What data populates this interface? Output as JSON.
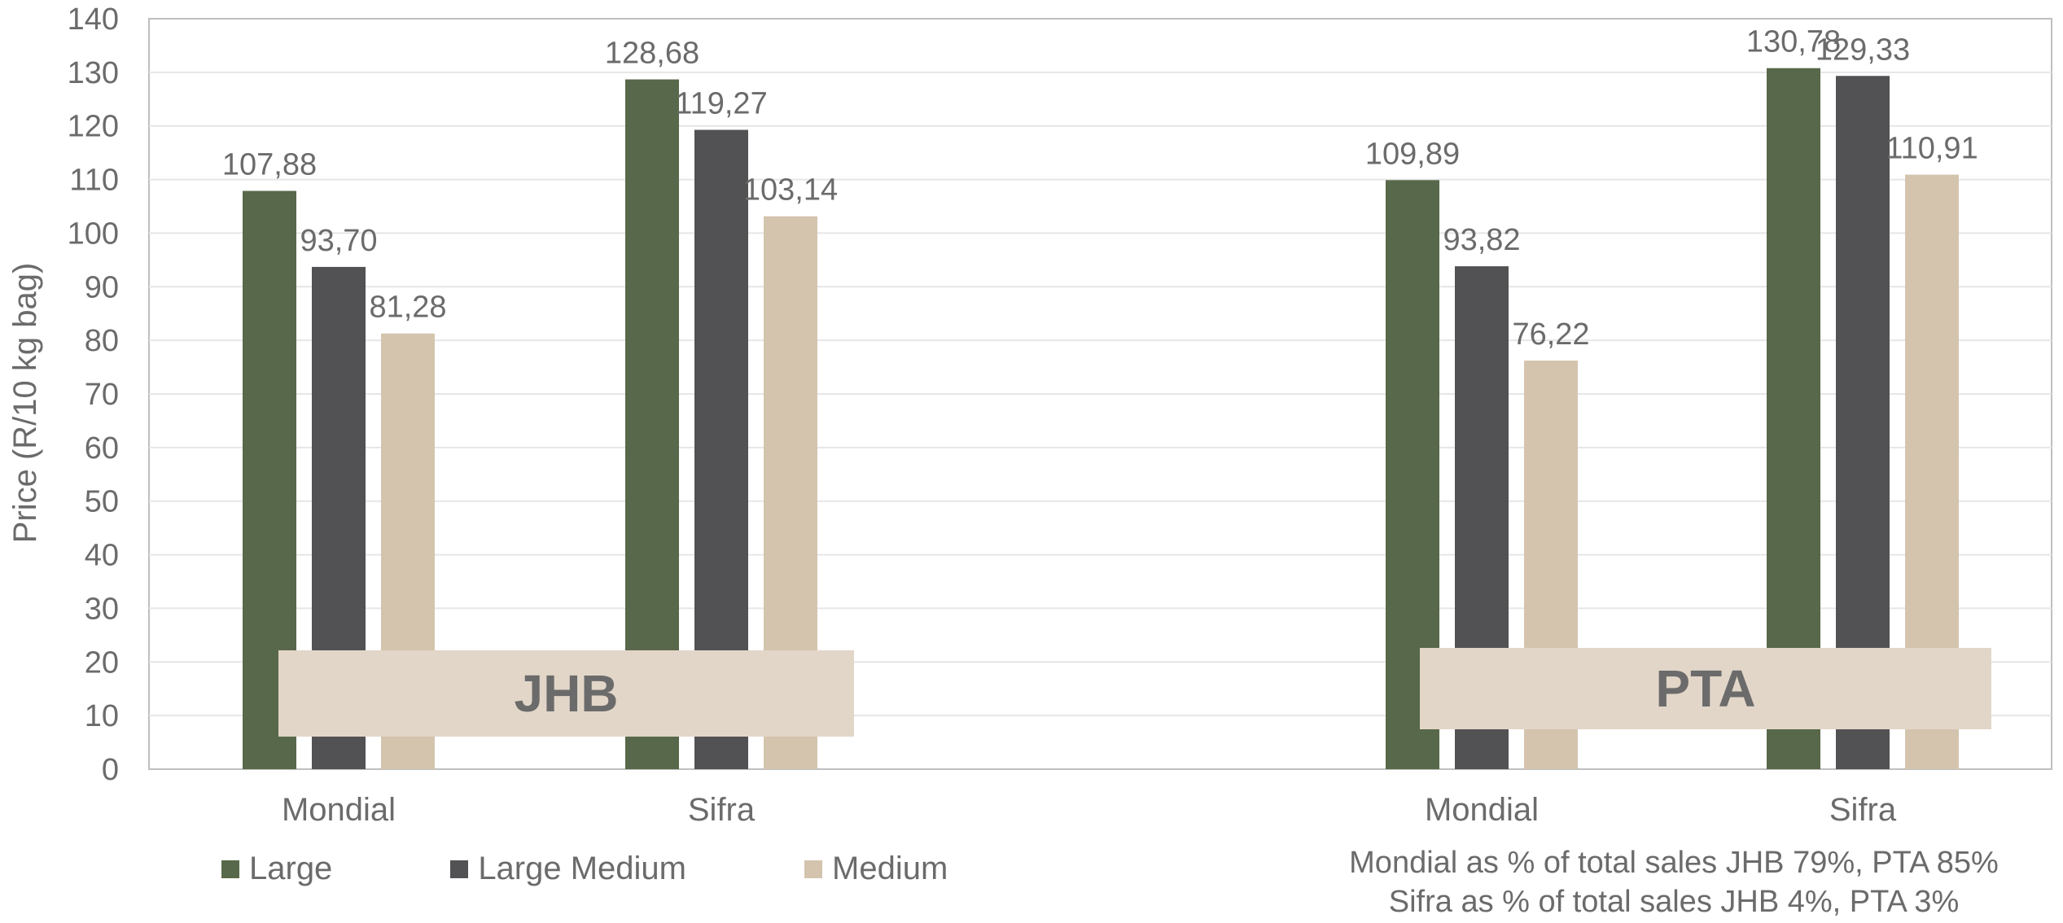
{
  "chart_data": {
    "type": "bar",
    "ylabel": "Price (R/10 kg bag)",
    "ylim": [
      0,
      140
    ],
    "ytick_step": 10,
    "grid": true,
    "legend_placement": "bottom-left",
    "series": [
      {
        "name": "Large",
        "color": "#58684a"
      },
      {
        "name": "Large Medium",
        "color": "#525254"
      },
      {
        "name": "Medium",
        "color": "#d4c4ae"
      }
    ],
    "groups": [
      {
        "market": "JHB",
        "categories": [
          {
            "name": "Mondial",
            "values": [
              107.88,
              93.7,
              81.28
            ],
            "labels": [
              "107,88",
              "93,70",
              "81,28"
            ]
          },
          {
            "name": "Sifra",
            "values": [
              128.68,
              119.27,
              103.14
            ],
            "labels": [
              "128,68",
              "119,27",
              "103,14"
            ]
          }
        ]
      },
      {
        "market": "PTA",
        "categories": [
          {
            "name": "Mondial",
            "values": [
              109.89,
              93.82,
              76.22
            ],
            "labels": [
              "109,89",
              "93,82",
              "76,22"
            ]
          },
          {
            "name": "Sifra",
            "values": [
              130.78,
              129.33,
              110.91
            ],
            "labels": [
              "130,78",
              "129,33",
              "110,91"
            ]
          }
        ]
      }
    ],
    "notes": [
      "Mondial as % of total sales JHB 79%, PTA 85%",
      "Sifra as % of total sales JHB 4%, PTA 3%"
    ]
  }
}
